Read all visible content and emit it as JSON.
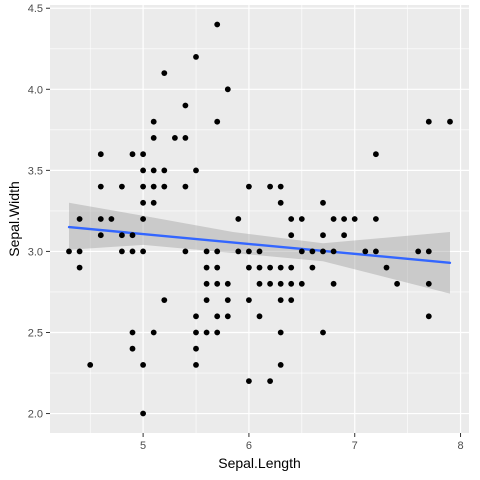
{
  "chart_data": {
    "type": "scatter",
    "xlabel": "Sepal.Length",
    "ylabel": "Sepal.Width",
    "xlim": [
      4.12,
      8.08
    ],
    "ylim": [
      1.88,
      4.52
    ],
    "xticks": [
      5,
      6,
      7,
      8
    ],
    "yticks": [
      2.0,
      2.5,
      3.0,
      3.5,
      4.0,
      4.5
    ],
    "ytick_labels": [
      "2.0",
      "2.5",
      "3.0",
      "3.5",
      "4.0",
      "4.5"
    ],
    "grid": true,
    "legend": "none",
    "colors": {
      "panel": "#ebebeb",
      "grid": "#ffffff",
      "points": "#000000",
      "smooth_line": "#3366ff",
      "confidence_band": "#999999"
    },
    "points": [
      [
        4.3,
        3.0
      ],
      [
        4.4,
        2.9
      ],
      [
        4.4,
        3.0
      ],
      [
        4.4,
        3.2
      ],
      [
        4.5,
        2.3
      ],
      [
        4.6,
        3.1
      ],
      [
        4.6,
        3.2
      ],
      [
        4.6,
        3.4
      ],
      [
        4.6,
        3.6
      ],
      [
        4.7,
        3.2
      ],
      [
        4.8,
        3.0
      ],
      [
        4.8,
        3.1
      ],
      [
        4.8,
        3.4
      ],
      [
        4.9,
        2.4
      ],
      [
        4.9,
        2.5
      ],
      [
        4.9,
        3.0
      ],
      [
        4.9,
        3.1
      ],
      [
        4.9,
        3.6
      ],
      [
        5.0,
        2.0
      ],
      [
        5.0,
        2.3
      ],
      [
        5.0,
        3.0
      ],
      [
        5.0,
        3.2
      ],
      [
        5.0,
        3.3
      ],
      [
        5.0,
        3.4
      ],
      [
        5.0,
        3.5
      ],
      [
        5.0,
        3.6
      ],
      [
        5.1,
        2.5
      ],
      [
        5.1,
        3.3
      ],
      [
        5.1,
        3.4
      ],
      [
        5.1,
        3.5
      ],
      [
        5.1,
        3.7
      ],
      [
        5.1,
        3.8
      ],
      [
        5.2,
        2.7
      ],
      [
        5.2,
        3.4
      ],
      [
        5.2,
        3.5
      ],
      [
        5.2,
        4.1
      ],
      [
        5.3,
        3.7
      ],
      [
        5.4,
        3.0
      ],
      [
        5.4,
        3.4
      ],
      [
        5.4,
        3.7
      ],
      [
        5.4,
        3.9
      ],
      [
        5.5,
        2.3
      ],
      [
        5.5,
        2.4
      ],
      [
        5.5,
        2.5
      ],
      [
        5.5,
        2.6
      ],
      [
        5.5,
        3.5
      ],
      [
        5.5,
        4.2
      ],
      [
        5.6,
        2.5
      ],
      [
        5.6,
        2.7
      ],
      [
        5.6,
        2.8
      ],
      [
        5.6,
        2.9
      ],
      [
        5.6,
        3.0
      ],
      [
        5.7,
        2.5
      ],
      [
        5.7,
        2.6
      ],
      [
        5.7,
        2.8
      ],
      [
        5.7,
        2.9
      ],
      [
        5.7,
        3.0
      ],
      [
        5.7,
        3.8
      ],
      [
        5.7,
        4.4
      ],
      [
        5.8,
        2.6
      ],
      [
        5.8,
        2.7
      ],
      [
        5.8,
        2.8
      ],
      [
        5.8,
        4.0
      ],
      [
        5.9,
        3.0
      ],
      [
        5.9,
        3.2
      ],
      [
        6.0,
        2.2
      ],
      [
        6.0,
        2.7
      ],
      [
        6.0,
        2.9
      ],
      [
        6.0,
        3.0
      ],
      [
        6.0,
        3.4
      ],
      [
        6.1,
        2.6
      ],
      [
        6.1,
        2.8
      ],
      [
        6.1,
        2.9
      ],
      [
        6.1,
        3.0
      ],
      [
        6.2,
        2.2
      ],
      [
        6.2,
        2.8
      ],
      [
        6.2,
        2.9
      ],
      [
        6.2,
        3.4
      ],
      [
        6.3,
        2.3
      ],
      [
        6.3,
        2.5
      ],
      [
        6.3,
        2.7
      ],
      [
        6.3,
        2.8
      ],
      [
        6.3,
        2.9
      ],
      [
        6.3,
        3.3
      ],
      [
        6.3,
        3.4
      ],
      [
        6.4,
        2.7
      ],
      [
        6.4,
        2.8
      ],
      [
        6.4,
        2.9
      ],
      [
        6.4,
        3.1
      ],
      [
        6.4,
        3.2
      ],
      [
        6.5,
        2.8
      ],
      [
        6.5,
        3.0
      ],
      [
        6.5,
        3.2
      ],
      [
        6.6,
        2.9
      ],
      [
        6.6,
        3.0
      ],
      [
        6.7,
        2.5
      ],
      [
        6.7,
        3.0
      ],
      [
        6.7,
        3.1
      ],
      [
        6.7,
        3.3
      ],
      [
        6.8,
        2.8
      ],
      [
        6.8,
        3.0
      ],
      [
        6.8,
        3.2
      ],
      [
        6.9,
        3.1
      ],
      [
        6.9,
        3.2
      ],
      [
        7.0,
        3.2
      ],
      [
        7.1,
        3.0
      ],
      [
        7.2,
        3.0
      ],
      [
        7.2,
        3.2
      ],
      [
        7.2,
        3.6
      ],
      [
        7.3,
        2.9
      ],
      [
        7.4,
        2.8
      ],
      [
        7.6,
        3.0
      ],
      [
        7.7,
        2.6
      ],
      [
        7.7,
        2.8
      ],
      [
        7.7,
        3.0
      ],
      [
        7.7,
        3.8
      ],
      [
        7.9,
        3.8
      ]
    ],
    "smooth": {
      "method": "linear",
      "line": [
        [
          4.3,
          3.15
        ],
        [
          7.9,
          2.93
        ]
      ],
      "band": [
        [
          4.3,
          3.01,
          3.3
        ],
        [
          5.0,
          3.04,
          3.22
        ],
        [
          5.85,
          2.99,
          3.12
        ],
        [
          6.7,
          2.94,
          3.05
        ],
        [
          7.9,
          2.74,
          3.12
        ]
      ]
    }
  }
}
